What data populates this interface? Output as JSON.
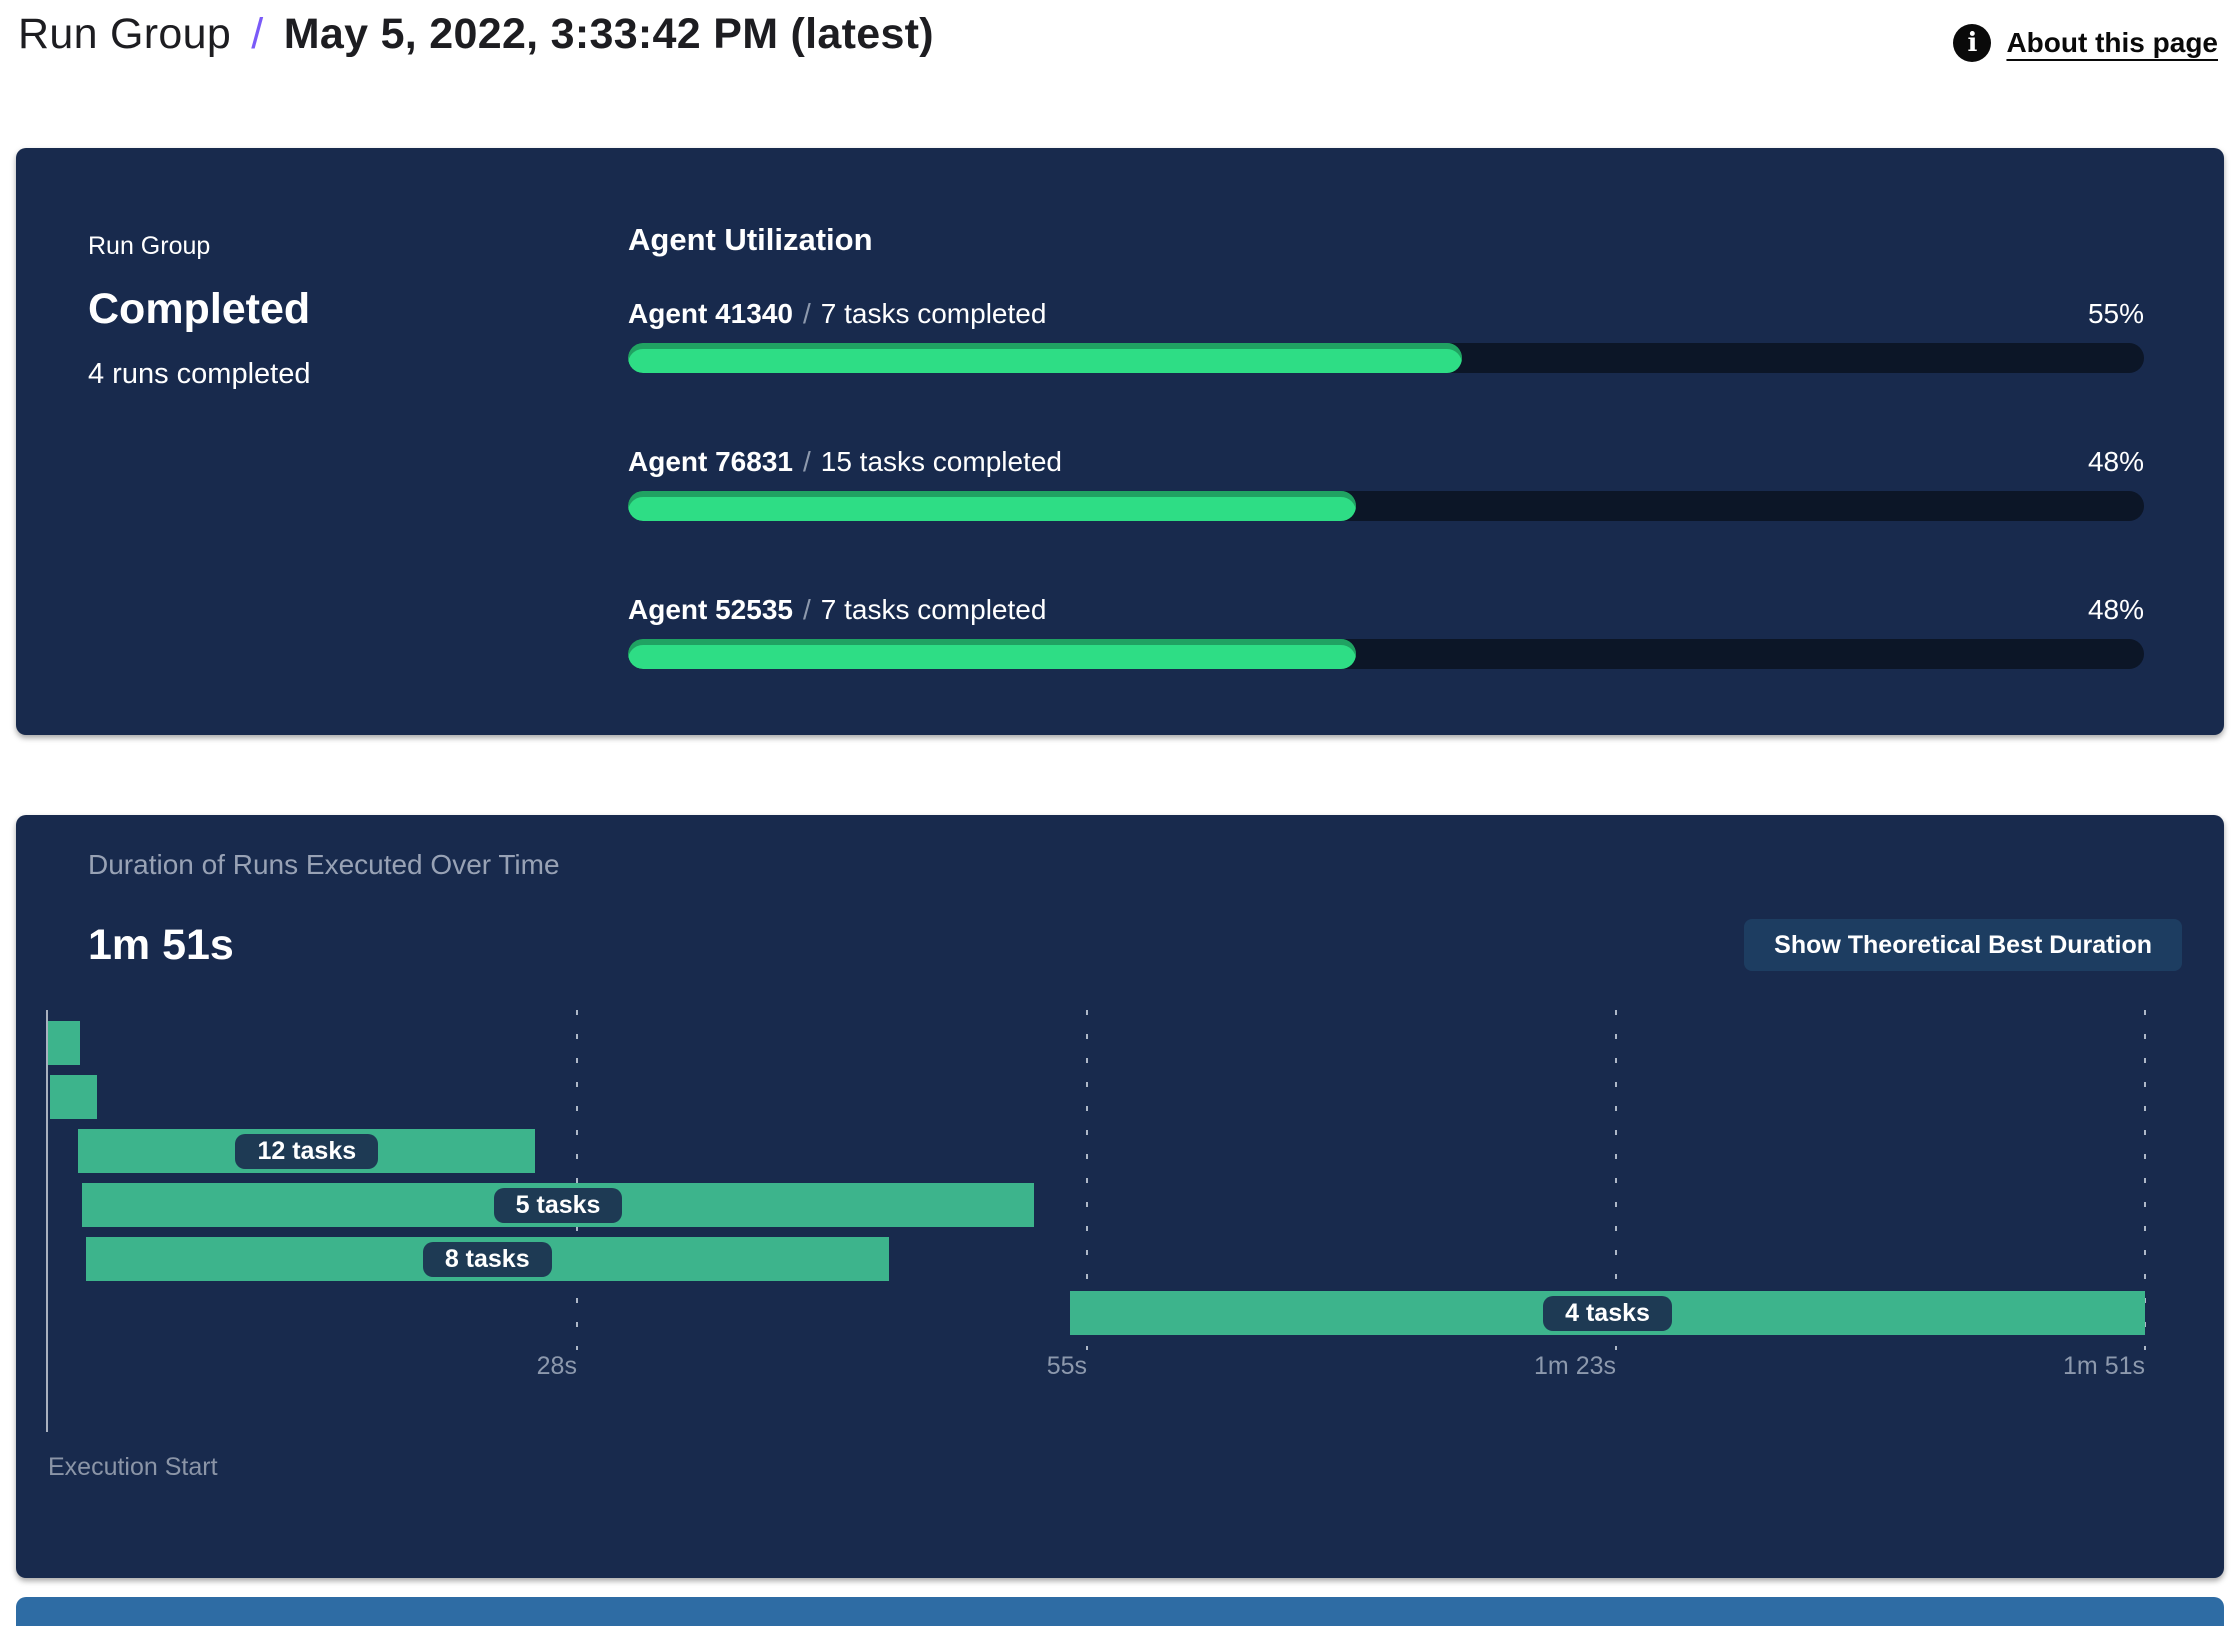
{
  "header": {
    "breadcrumb_root": "Run Group",
    "separator": "/",
    "title": "May 5, 2022, 3:33:42 PM (latest)",
    "about_link": "About this page",
    "accent_color": "#7a5af8"
  },
  "summary_card": {
    "label": "Run Group",
    "status": "Completed",
    "runs_completed": "4 runs completed",
    "section_title": "Agent Utilization",
    "agent_separator": "/",
    "agents": [
      {
        "name": "Agent 41340",
        "tasks": "7 tasks completed",
        "utilization": "55%"
      },
      {
        "name": "Agent 76831",
        "tasks": "15 tasks completed",
        "utilization": "48%"
      },
      {
        "name": "Agent 52535",
        "tasks": "7 tasks completed",
        "utilization": "48%"
      }
    ]
  },
  "duration_card": {
    "title": "Duration of Runs Executed Over Time",
    "total_duration": "1m 51s",
    "button_label": "Show Theoretical Best Duration",
    "axis_label": "Execution Start"
  },
  "chart_data": [
    {
      "type": "bar",
      "title": "Agent Utilization",
      "categories": [
        "Agent 41340",
        "Agent 76831",
        "Agent 52535"
      ],
      "values": [
        55,
        48,
        48
      ],
      "unit": "%",
      "annotations": [
        "7 tasks completed",
        "15 tasks completed",
        "7 tasks completed"
      ],
      "xlim": [
        0,
        100
      ],
      "bar_color": "#2edd85",
      "track_color": "#0c1627"
    },
    {
      "type": "gantt",
      "title": "Duration of Runs Executed Over Time",
      "total_label": "1m 51s",
      "total_duration_s": 111,
      "xlabel": "Execution Start",
      "x_ticks": [
        {
          "s": 28,
          "label": "28s"
        },
        {
          "s": 55,
          "label": "55s"
        },
        {
          "s": 83,
          "label": "1m 23s"
        },
        {
          "s": 111,
          "label": "1m 51s"
        }
      ],
      "bars": [
        {
          "start_s": 0.0,
          "end_s": 1.7,
          "label": ""
        },
        {
          "start_s": 0.1,
          "end_s": 2.6,
          "label": ""
        },
        {
          "start_s": 1.6,
          "end_s": 25.8,
          "label": "12 tasks"
        },
        {
          "start_s": 1.8,
          "end_s": 52.2,
          "label": "5 tasks"
        },
        {
          "start_s": 2.0,
          "end_s": 44.5,
          "label": "8 tasks"
        },
        {
          "start_s": 54.1,
          "end_s": 111.0,
          "label": "4 tasks"
        }
      ],
      "bar_color": "#3db48c",
      "label_pill_color": "#1e3a54",
      "grid": true,
      "legend": false
    }
  ],
  "colors": {
    "card_background": "#182a4d",
    "progress_green": "#2edd85",
    "gantt_green": "#3db48c",
    "accent_purple": "#7a5af8",
    "muted_text": "#8d99ad",
    "bottom_strip_blue": "#2e6ca4"
  }
}
